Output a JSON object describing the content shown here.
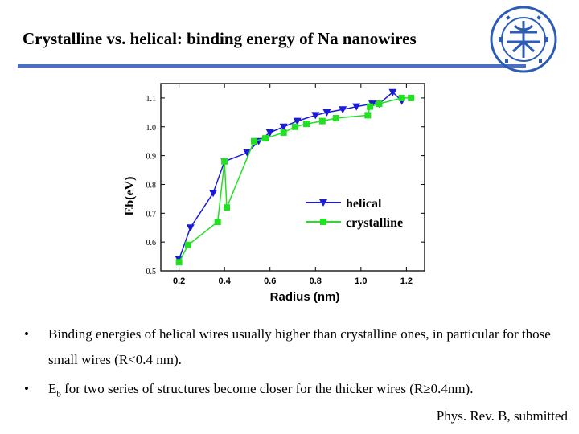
{
  "header": {
    "title": "Crystalline vs. helical: binding energy of Na nanowires",
    "accent_color": "#4a6ec2",
    "logo": {
      "icon": "university-seal-icon",
      "color": "#2a5cb8"
    }
  },
  "chart_data": {
    "type": "line",
    "xlabel": "Radius (nm)",
    "ylabel": "Eb(eV)",
    "xlim": [
      0.12,
      1.28
    ],
    "ylim": [
      0.5,
      1.15
    ],
    "xticks": [
      0.2,
      0.4,
      0.6,
      0.8,
      1.0,
      1.2
    ],
    "yticks": [
      0.5,
      0.6,
      0.7,
      0.8,
      0.9,
      1.0,
      1.1
    ],
    "grid": false,
    "legend": "center-right",
    "series": [
      {
        "name": "helical",
        "color": "#1a1ad8",
        "marker": "triangle-down",
        "x": [
          0.2,
          0.25,
          0.35,
          0.4,
          0.5,
          0.55,
          0.6,
          0.66,
          0.72,
          0.8,
          0.85,
          0.92,
          0.98,
          1.05,
          1.08,
          1.14,
          1.18
        ],
        "y": [
          0.54,
          0.65,
          0.77,
          0.88,
          0.91,
          0.95,
          0.98,
          1.0,
          1.02,
          1.04,
          1.05,
          1.06,
          1.07,
          1.08,
          1.08,
          1.12,
          1.09
        ]
      },
      {
        "name": "crystalline",
        "color": "#22e022",
        "marker": "square",
        "x": [
          0.2,
          0.24,
          0.37,
          0.4,
          0.41,
          0.53,
          0.58,
          0.66,
          0.71,
          0.76,
          0.83,
          0.89,
          1.03,
          1.04,
          1.08,
          1.18,
          1.22
        ],
        "y": [
          0.53,
          0.59,
          0.67,
          0.88,
          0.72,
          0.95,
          0.96,
          0.98,
          1.0,
          1.01,
          1.02,
          1.03,
          1.04,
          1.07,
          1.08,
          1.1,
          1.1
        ]
      }
    ]
  },
  "bullets": [
    "Binding energies of helical wires usually higher than crystalline ones, in particular for those small wires (R<0.4 nm).",
    {
      "pre": "E",
      "sub": "b",
      "post": " for two series of structures become closer for the thicker wires (R≥0.4nm)."
    }
  ],
  "reference": "Phys. Rev. B, submitted"
}
